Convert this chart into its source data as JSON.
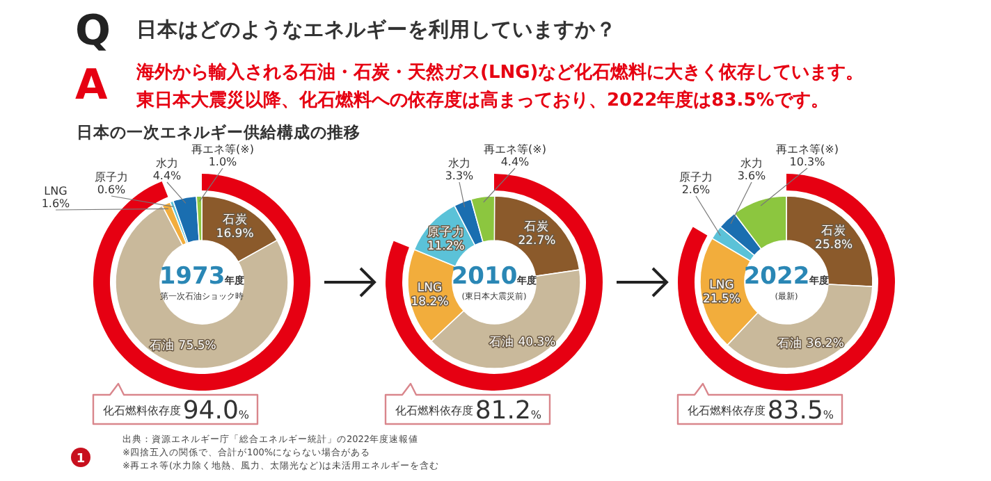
{
  "chart_data": [
    {
      "type": "other",
      "title": "日本はどのようなエネルギーを利用していますか？",
      "annotations": [
        "Q",
        "A",
        "海外から輸入される石油・石炭・天然ガス(LNG)など化石燃料に大きく依存しています。",
        "東日本大震災以降、化石燃料への依存度は高まっており、2022年度は83.5%です。",
        "日本の一次エネルギー供給構成の推移",
        "出典：資源エネルギー庁「総合エネルギー統計」の2022年度速報値",
        "※四捨五入の関係で、合計が100%にならない場合がある",
        "※再エネ等(水力除く地熱、風力、太陽光など)は未活用エネルギーを含む",
        "1"
      ]
    },
    {
      "type": "donut",
      "title": "1973年度",
      "subtitle": "第一次石油ショック時",
      "categories": [
        "石炭",
        "石油",
        "LNG",
        "原子力",
        "水力",
        "再エネ等(※)"
      ],
      "series": [
        {
          "values": [
            16.9,
            75.5,
            1.6,
            0.6,
            4.4,
            1.0
          ],
          "colors": [
            "#8b5a2b",
            "#c9b99b",
            "#f2ad3c",
            "#5bc2d8",
            "#1a6eb0",
            "#8cc63f"
          ],
          "value_labels": [
            "16.9%",
            "75.5%",
            "1.6%",
            "0.6%",
            "4.4%",
            "1.0%"
          ]
        },
        {
          "name": "化石燃料依存度",
          "values": [
            94.0,
            null,
            null,
            null,
            null,
            null
          ],
          "color": "#e60012",
          "value_labels": [
            "94.0%",
            null,
            null,
            null,
            null,
            null
          ]
        }
      ]
    },
    {
      "type": "donut",
      "title": "2010年度",
      "subtitle": "(東日本大震災前)",
      "categories": [
        "石炭",
        "石油",
        "LNG",
        "原子力",
        "水力",
        "再エネ等(※)"
      ],
      "series": [
        {
          "values": [
            22.7,
            40.3,
            18.2,
            11.2,
            3.3,
            4.4
          ],
          "colors": [
            "#8b5a2b",
            "#c9b99b",
            "#f2ad3c",
            "#5bc2d8",
            "#1a6eb0",
            "#8cc63f"
          ],
          "value_labels": [
            "22.7%",
            "40.3%",
            "18.2%",
            "11.2%",
            "3.3%",
            "4.4%"
          ]
        },
        {
          "name": "化石燃料依存度",
          "values": [
            81.2,
            null,
            null,
            null,
            null,
            null
          ],
          "color": "#e60012",
          "value_labels": [
            "81.2%",
            null,
            null,
            null,
            null,
            null
          ]
        }
      ]
    },
    {
      "type": "donut",
      "title": "2022年度",
      "subtitle": "(最新)",
      "categories": [
        "石炭",
        "石油",
        "LNG",
        "原子力",
        "水力",
        "再エネ等(※)"
      ],
      "series": [
        {
          "values": [
            25.8,
            36.2,
            21.5,
            2.6,
            3.6,
            10.3
          ],
          "colors": [
            "#8b5a2b",
            "#c9b99b",
            "#f2ad3c",
            "#5bc2d8",
            "#1a6eb0",
            "#8cc63f"
          ],
          "value_labels": [
            "25.8%",
            "36.2%",
            "21.5%",
            "2.6%",
            "3.6%",
            "10.3%"
          ]
        },
        {
          "name": "化石燃料依存度",
          "values": [
            83.5,
            null,
            null,
            null,
            null,
            null
          ],
          "color": "#e60012",
          "value_labels": [
            "83.5%",
            null,
            null,
            null,
            null,
            null
          ]
        }
      ]
    }
  ]
}
